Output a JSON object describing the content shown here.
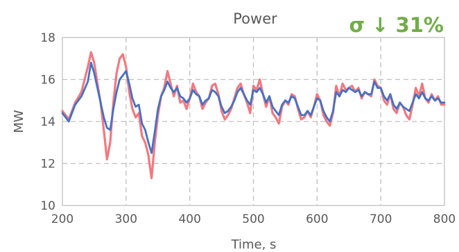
{
  "chart_data": {
    "type": "line",
    "title": "Power",
    "annotation": "σ ↓ 31%",
    "xlabel": "Time, s",
    "ylabel": "MW",
    "xlim": [
      200,
      800
    ],
    "ylim": [
      10,
      18
    ],
    "xticks": [
      200,
      300,
      400,
      500,
      600,
      700,
      800
    ],
    "yticks": [
      10,
      12,
      14,
      16,
      18
    ],
    "grid": true,
    "legend": "none",
    "series": [
      {
        "color": "#F4777F",
        "x": [
          200,
          210,
          220,
          230,
          240,
          245,
          250,
          255,
          260,
          265,
          270,
          275,
          280,
          285,
          290,
          295,
          300,
          305,
          310,
          315,
          320,
          325,
          330,
          335,
          340,
          345,
          350,
          355,
          360,
          365,
          370,
          375,
          380,
          385,
          390,
          395,
          400,
          405,
          410,
          415,
          420,
          425,
          430,
          435,
          440,
          445,
          450,
          455,
          460,
          465,
          470,
          475,
          480,
          485,
          490,
          495,
          500,
          505,
          510,
          515,
          520,
          525,
          530,
          535,
          540,
          545,
          550,
          555,
          560,
          565,
          570,
          575,
          580,
          585,
          590,
          595,
          600,
          605,
          610,
          615,
          620,
          625,
          630,
          635,
          640,
          645,
          650,
          655,
          660,
          665,
          670,
          675,
          680,
          685,
          690,
          695,
          700,
          705,
          710,
          715,
          720,
          725,
          730,
          735,
          740,
          745,
          750,
          755,
          760,
          765,
          770,
          775,
          780,
          785,
          790,
          795,
          800
        ],
        "y": [
          14.5,
          14.1,
          14.9,
          15.4,
          16.6,
          17.3,
          16.8,
          15.8,
          14.9,
          13.6,
          12.2,
          13.0,
          14.9,
          16.3,
          17.0,
          17.2,
          16.6,
          15.4,
          14.6,
          14.2,
          14.4,
          13.3,
          13.0,
          12.4,
          11.3,
          13.0,
          14.3,
          15.2,
          15.6,
          16.4,
          15.8,
          15.2,
          15.7,
          14.9,
          15.0,
          14.6,
          15.1,
          15.8,
          15.4,
          15.2,
          14.6,
          14.9,
          15.1,
          15.7,
          15.8,
          15.3,
          14.5,
          14.1,
          14.3,
          14.6,
          15.1,
          15.6,
          15.8,
          15.3,
          14.9,
          14.4,
          15.7,
          15.5,
          16.0,
          15.3,
          14.7,
          15.2,
          14.4,
          14.2,
          13.9,
          14.7,
          15.0,
          14.8,
          15.3,
          15.2,
          14.6,
          14.1,
          14.2,
          14.5,
          14.2,
          14.7,
          15.3,
          15.0,
          14.3,
          14.0,
          13.8,
          14.4,
          15.7,
          15.2,
          15.8,
          15.5,
          15.6,
          15.7,
          15.4,
          15.6,
          15.1,
          15.4,
          15.3,
          15.2,
          16.0,
          15.7,
          15.6,
          15.0,
          14.8,
          15.3,
          14.6,
          14.4,
          14.9,
          14.7,
          14.3,
          14.1,
          14.8,
          15.6,
          15.2,
          15.8,
          15.1,
          14.9,
          15.3,
          15.0,
          15.2,
          14.8,
          14.8
        ]
      },
      {
        "color": "#4472C4",
        "x": [
          200,
          210,
          220,
          230,
          240,
          245,
          250,
          255,
          260,
          265,
          270,
          275,
          280,
          285,
          290,
          295,
          300,
          305,
          310,
          315,
          320,
          325,
          330,
          335,
          340,
          345,
          350,
          355,
          360,
          365,
          370,
          375,
          380,
          385,
          390,
          395,
          400,
          405,
          410,
          415,
          420,
          425,
          430,
          435,
          440,
          445,
          450,
          455,
          460,
          465,
          470,
          475,
          480,
          485,
          490,
          495,
          500,
          505,
          510,
          515,
          520,
          525,
          530,
          535,
          540,
          545,
          550,
          555,
          560,
          565,
          570,
          575,
          580,
          585,
          590,
          595,
          600,
          605,
          610,
          615,
          620,
          625,
          630,
          635,
          640,
          645,
          650,
          655,
          660,
          665,
          670,
          675,
          680,
          685,
          690,
          695,
          700,
          705,
          710,
          715,
          720,
          725,
          730,
          735,
          740,
          745,
          750,
          755,
          760,
          765,
          770,
          775,
          780,
          785,
          790,
          795,
          800
        ],
        "y": [
          14.4,
          14.0,
          14.8,
          15.2,
          15.9,
          16.8,
          16.3,
          15.6,
          14.9,
          14.2,
          13.7,
          13.6,
          14.6,
          15.4,
          16.0,
          16.2,
          16.4,
          15.8,
          15.1,
          14.7,
          14.8,
          13.9,
          13.6,
          13.0,
          12.5,
          13.5,
          14.6,
          15.2,
          15.5,
          15.9,
          15.6,
          15.4,
          15.6,
          15.2,
          15.1,
          14.9,
          15.1,
          15.5,
          15.3,
          15.2,
          14.8,
          15.0,
          15.1,
          15.5,
          15.4,
          15.2,
          14.7,
          14.4,
          14.5,
          14.7,
          15.0,
          15.4,
          15.6,
          15.3,
          15.0,
          14.8,
          15.5,
          15.4,
          15.6,
          15.3,
          14.9,
          15.2,
          14.7,
          14.5,
          14.3,
          14.8,
          15.0,
          14.9,
          15.2,
          15.1,
          14.7,
          14.3,
          14.3,
          14.5,
          14.3,
          14.7,
          15.1,
          15.0,
          14.5,
          14.2,
          14.0,
          14.5,
          15.4,
          15.2,
          15.5,
          15.4,
          15.6,
          15.5,
          15.4,
          15.5,
          15.2,
          15.4,
          15.3,
          15.3,
          15.9,
          15.6,
          15.6,
          15.2,
          15.0,
          15.3,
          14.8,
          14.6,
          14.9,
          14.7,
          14.6,
          14.5,
          14.9,
          15.3,
          15.1,
          15.4,
          15.1,
          15.0,
          15.2,
          15.0,
          15.1,
          14.9,
          14.9
        ]
      }
    ]
  }
}
